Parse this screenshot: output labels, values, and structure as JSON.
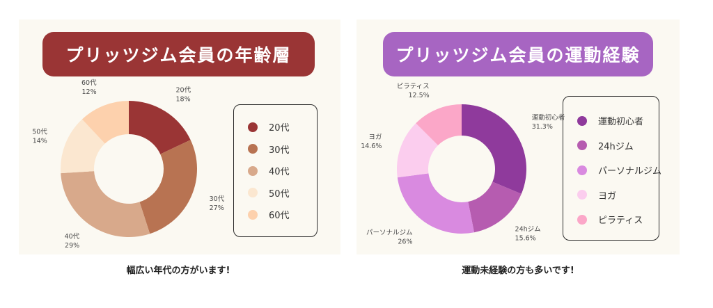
{
  "charts": {
    "left": {
      "title": "プリッツジム会員の年齢層",
      "caption": "幅広い年代の方がいます!",
      "legend": [
        "20代",
        "30代",
        "40代",
        "50代",
        "60代"
      ]
    },
    "right": {
      "title": "プリッツジム会員の運動経験",
      "caption": "運動未経験の方も多いです!",
      "legend": [
        "運動初心者",
        "24hジム",
        "パーソナルジム",
        "ヨガ",
        "ピラティス"
      ]
    }
  },
  "chart_data": [
    {
      "type": "pie",
      "title": "プリッツジム会員の年齢層",
      "donut": true,
      "legend_position": "right",
      "categories": [
        "20代",
        "30代",
        "40代",
        "50代",
        "60代"
      ],
      "values": [
        18,
        27,
        29,
        14,
        12
      ],
      "value_labels": [
        "18%",
        "27%",
        "29%",
        "14%",
        "12%"
      ],
      "colors": [
        "#9a3535",
        "#b87352",
        "#d8a98b",
        "#fbe7d0",
        "#fdd1ad"
      ]
    },
    {
      "type": "pie",
      "title": "プリッツジム会員の運動経験",
      "donut": true,
      "legend_position": "right",
      "categories": [
        "運動初心者",
        "24hジム",
        "パーソナルジム",
        "ヨガ",
        "ピラティス"
      ],
      "values": [
        31.3,
        15.6,
        26,
        14.6,
        12.5
      ],
      "value_labels": [
        "31.3%",
        "15.6%",
        "26%",
        "14.6%",
        "12.5%"
      ],
      "colors": [
        "#8f3a9c",
        "#b65cb0",
        "#d98ae0",
        "#fbcdee",
        "#fba7c8"
      ]
    }
  ]
}
